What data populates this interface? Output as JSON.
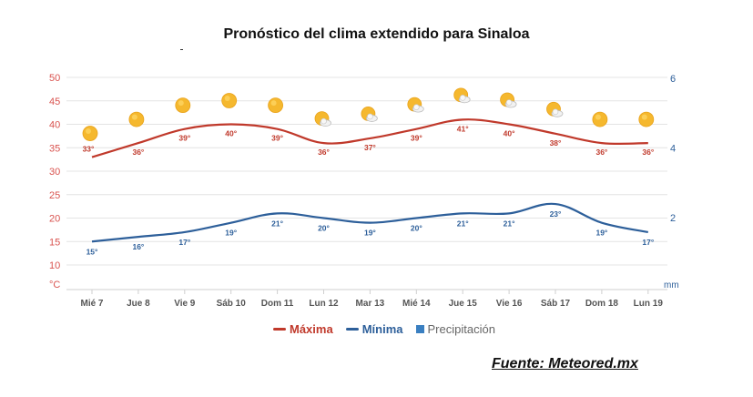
{
  "title": "Pronóstico del clima extendido para Sinaloa",
  "source": "Fuente: Meteored.mx",
  "colors": {
    "max": "#c0392b",
    "min": "#2d5f9a",
    "precip": "#3a7fc1",
    "axisLeft": "#d9534f",
    "axisRight": "#2d5f9a",
    "grid": "#e4e4e4"
  },
  "legend": [
    {
      "label": "Máxima",
      "type": "line",
      "color": "#c0392b"
    },
    {
      "label": "Mínima",
      "type": "line",
      "color": "#2d5f9a"
    },
    {
      "label": "Precipitación",
      "type": "square",
      "color": "#3a7fc1"
    }
  ],
  "chart_data": {
    "type": "line",
    "categories": [
      "Mié 7",
      "Jue 8",
      "Vie 9",
      "Sáb 10",
      "Dom 11",
      "Lun 12",
      "Mar 13",
      "Mié 14",
      "Jue 15",
      "Vie 16",
      "Sáb 17",
      "Dom 18",
      "Lun 19"
    ],
    "series": [
      {
        "name": "Máxima",
        "values": [
          33,
          36,
          39,
          40,
          39,
          36,
          37,
          39,
          41,
          40,
          38,
          36,
          36
        ],
        "labels": [
          "33°",
          "36°",
          "39°",
          "40°",
          "39°",
          "36°",
          "37°",
          "39°",
          "41°",
          "40°",
          "38°",
          "36°",
          "36°"
        ]
      },
      {
        "name": "Mínima",
        "values": [
          15,
          16,
          17,
          19,
          21,
          20,
          19,
          20,
          21,
          21,
          23,
          19,
          17
        ],
        "labels": [
          "15°",
          "16°",
          "17°",
          "19°",
          "21°",
          "20°",
          "19°",
          "20°",
          "21°",
          "21°",
          "23°",
          "19°",
          "17°"
        ]
      }
    ],
    "weather_icons": [
      "sunny",
      "sunny",
      "sunny",
      "sunny",
      "sunny",
      "partly-cloudy",
      "partly-cloudy",
      "partly-cloudy",
      "partly-cloudy",
      "partly-cloudy",
      "partly-cloudy",
      "sunny",
      "sunny"
    ],
    "y_left": {
      "ticks": [
        "50",
        "45",
        "40",
        "35",
        "30",
        "25",
        "20",
        "15",
        "10"
      ],
      "unit": "°C",
      "range": [
        7.5,
        50
      ]
    },
    "y_right": {
      "ticks": [
        "6",
        "4",
        "2"
      ],
      "unit": "mm",
      "range": [
        0,
        6
      ]
    },
    "grid": true
  }
}
